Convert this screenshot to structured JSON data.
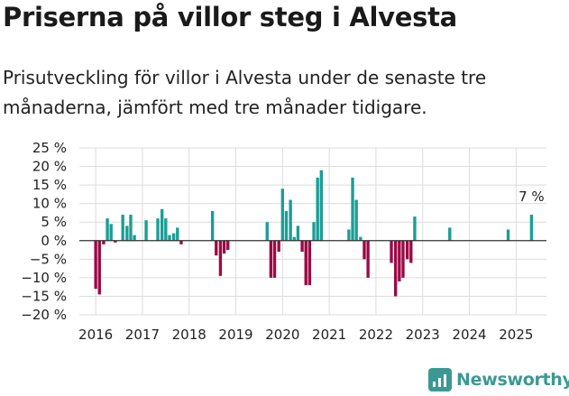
{
  "header": {
    "title": "Priserna på villor steg i Alvesta",
    "subtitle": "Prisutveckling för villor i Alvesta under de senaste tre månaderna, jämfört med tre månader tidigare."
  },
  "brand": {
    "name": "Newsworthy",
    "color": "#3a9a93"
  },
  "colors": {
    "positive": "#1a9e96",
    "negative": "#9b0a45",
    "grid": "#dcdcdc"
  },
  "chart_data": {
    "type": "bar",
    "title": "Priserna på villor steg i Alvesta",
    "subtitle": "Prisutveckling för villor i Alvesta under de senaste tre månaderna, jämfört med tre månader tidigare.",
    "ylim": [
      -20,
      25
    ],
    "yticks": [
      25,
      20,
      15,
      10,
      5,
      0,
      -5,
      -10,
      -15,
      -20
    ],
    "ytick_labels": [
      "25 %",
      "20 %",
      "15 %",
      "10 %",
      "5 %",
      "0 %",
      "−5 %",
      "−10 %",
      "−15 %",
      "−20 %"
    ],
    "xlim": [
      2015.65,
      2025.65
    ],
    "xticks": [
      2016,
      2017,
      2018,
      2019,
      2020,
      2021,
      2022,
      2023,
      2024,
      2025
    ],
    "xtick_labels": [
      "2016",
      "2017",
      "2018",
      "2019",
      "2020",
      "2021",
      "2022",
      "2023",
      "2024",
      "2025"
    ],
    "grid": true,
    "annotation": {
      "text": "7 %",
      "x": 2025.33,
      "y": 7
    },
    "x": [
      2016.0,
      2016.08,
      2016.17,
      2016.25,
      2016.33,
      2016.42,
      2016.58,
      2016.67,
      2016.75,
      2016.83,
      2017.08,
      2017.33,
      2017.42,
      2017.5,
      2017.58,
      2017.67,
      2017.75,
      2017.83,
      2018.5,
      2018.58,
      2018.67,
      2018.75,
      2018.83,
      2019.67,
      2019.75,
      2019.83,
      2019.92,
      2020.0,
      2020.08,
      2020.17,
      2020.25,
      2020.33,
      2020.42,
      2020.5,
      2020.58,
      2020.67,
      2020.75,
      2020.83,
      2021.42,
      2021.5,
      2021.58,
      2021.67,
      2021.75,
      2021.83,
      2022.33,
      2022.42,
      2022.5,
      2022.58,
      2022.67,
      2022.75,
      2022.83,
      2023.58,
      2024.83,
      2025.33
    ],
    "values": [
      -13,
      -14.5,
      -1,
      6,
      4.5,
      -0.5,
      7,
      4,
      7,
      1.5,
      5.5,
      6,
      8.5,
      6,
      1.5,
      2,
      3.5,
      -1,
      8,
      -4,
      -9.5,
      -3.5,
      -2.5,
      5,
      -10,
      -10,
      -3,
      14,
      8,
      11,
      1,
      4,
      -3,
      -12,
      -12,
      5,
      17,
      19,
      3,
      17,
      11,
      1,
      -5,
      -10,
      -6,
      -15,
      -11,
      -10,
      -5,
      -6,
      6.5,
      3.5,
      3,
      7
    ]
  }
}
